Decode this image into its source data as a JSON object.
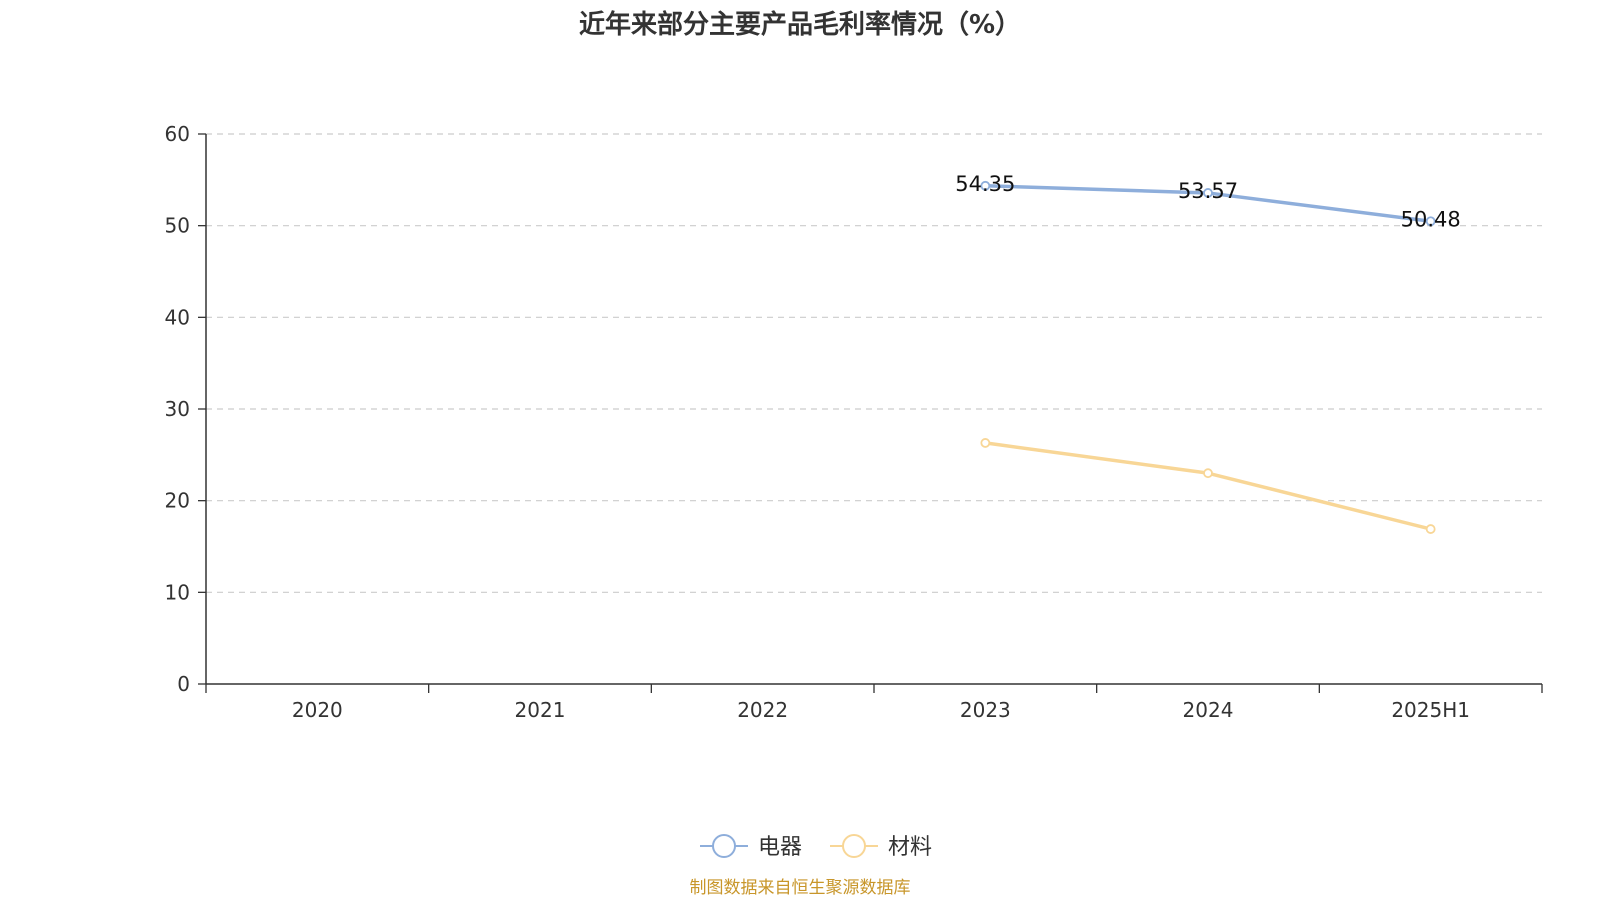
{
  "chart_data": {
    "type": "line",
    "title": "近年来部分主要产品毛利率情况（%）",
    "categories": [
      "2020",
      "2021",
      "2022",
      "2023",
      "2024",
      "2025H1"
    ],
    "ylim": [
      0,
      60
    ],
    "yticks": [
      0,
      10,
      20,
      30,
      40,
      50,
      60
    ],
    "grid": true,
    "legend_position": "bottom",
    "series": [
      {
        "name": "电器",
        "color": "#8eaedb",
        "values": [
          null,
          null,
          null,
          54.35,
          53.57,
          50.48
        ],
        "data_labels": [
          null,
          null,
          null,
          "54.35",
          "53.57",
          "50.48"
        ]
      },
      {
        "name": "材料",
        "color": "#f8d696",
        "values": [
          null,
          null,
          null,
          26.3,
          23.0,
          16.9
        ],
        "data_labels": [
          null,
          null,
          null,
          null,
          null,
          null
        ]
      }
    ]
  },
  "footer": {
    "source": "制图数据来自恒生聚源数据库"
  }
}
